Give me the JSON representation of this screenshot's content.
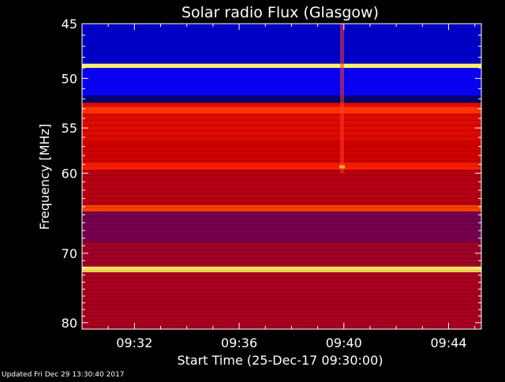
{
  "footer": {
    "updated": "Updated Fri Dec 29 13:30:40 2017"
  },
  "chart_data": {
    "type": "heatmap",
    "title": "Solar radio Flux (Glasgow)",
    "xlabel": "Start Time (25-Dec-17 09:30:00)",
    "ylabel": "Frequency [MHz]",
    "xlim": [
      "09:30:00",
      "09:45:15"
    ],
    "ylim": [
      45,
      81
    ],
    "x_ticks": [
      "09:32",
      "09:36",
      "09:40",
      "09:44"
    ],
    "y_ticks": [
      "45",
      "50",
      "55",
      "60",
      "70",
      "80"
    ],
    "colormap": [
      "#000030",
      "#0000ff",
      "#800040",
      "#d00000",
      "#ff2000",
      "#ff8000",
      "#ffff80"
    ],
    "bands": [
      {
        "f_start": 45.0,
        "f_end": 48.6,
        "level": 0.12
      },
      {
        "f_start": 48.6,
        "f_end": 49.0,
        "level": 0.98
      },
      {
        "f_start": 49.0,
        "f_end": 51.7,
        "level": 0.18
      },
      {
        "f_start": 51.7,
        "f_end": 52.4,
        "level": 0.05
      },
      {
        "f_start": 52.4,
        "f_end": 52.8,
        "level": 0.55
      },
      {
        "f_start": 52.8,
        "f_end": 53.5,
        "level": 0.7
      },
      {
        "f_start": 53.5,
        "f_end": 56.5,
        "level": 0.55
      },
      {
        "f_start": 56.5,
        "f_end": 58.8,
        "level": 0.5
      },
      {
        "f_start": 58.8,
        "f_end": 59.6,
        "level": 0.65
      },
      {
        "f_start": 59.6,
        "f_end": 63.8,
        "level": 0.45
      },
      {
        "f_start": 63.8,
        "f_end": 64.6,
        "level": 0.72
      },
      {
        "f_start": 64.6,
        "f_end": 68.5,
        "level": 0.32
      },
      {
        "f_start": 68.5,
        "f_end": 71.8,
        "level": 0.4
      },
      {
        "f_start": 71.8,
        "f_end": 72.6,
        "level": 0.96
      },
      {
        "f_start": 72.6,
        "f_end": 81.0,
        "level": 0.42
      }
    ],
    "events": [
      {
        "time": "09:39:55",
        "f_start": 45.0,
        "f_end": 60.0,
        "label": ""
      }
    ]
  }
}
